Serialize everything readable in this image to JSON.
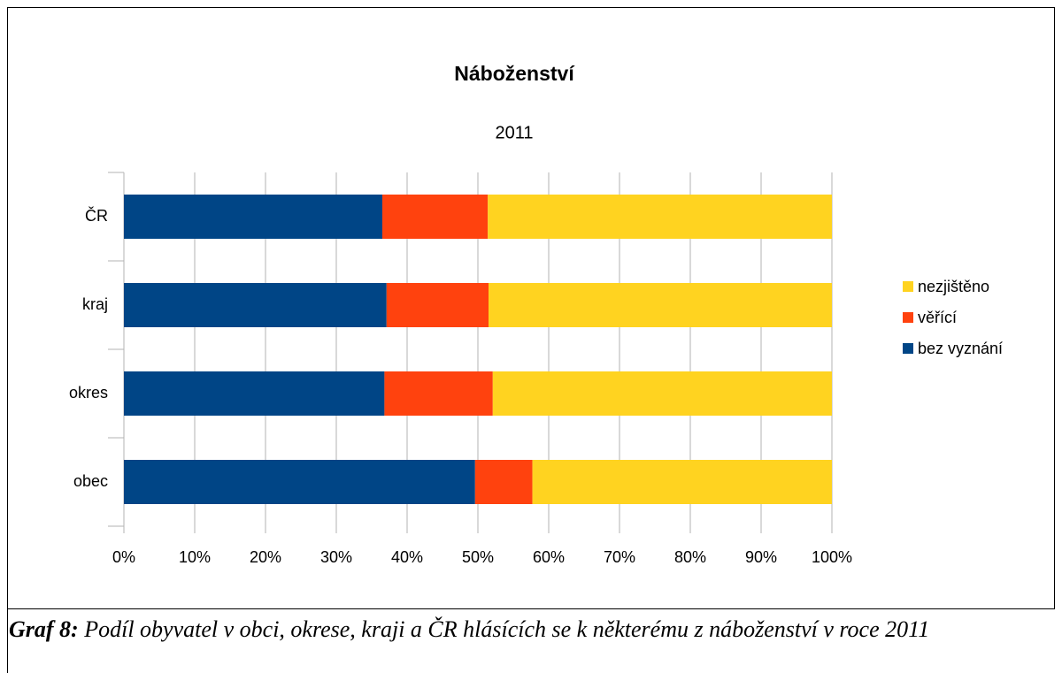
{
  "chart_data": {
    "type": "stacked_barh",
    "title": "Náboženství",
    "subtitle": "2011",
    "categories": [
      "ČR",
      "kraj",
      "okres",
      "obec"
    ],
    "series": [
      {
        "name": "bez vyznání",
        "color": "#004586",
        "values": [
          36.5,
          37.1,
          36.8,
          49.6
        ]
      },
      {
        "name": "věřící",
        "color": "#ff420e",
        "values": [
          14.9,
          14.4,
          15.3,
          8.1
        ]
      },
      {
        "name": "nezjištěno",
        "color": "#ffd320",
        "values": [
          48.6,
          48.5,
          47.9,
          42.3
        ]
      }
    ],
    "xlim": [
      0,
      100
    ],
    "xticks": [
      {
        "value": 0,
        "label": "0%"
      },
      {
        "value": 10,
        "label": "10%"
      },
      {
        "value": 20,
        "label": "20%"
      },
      {
        "value": 30,
        "label": "30%"
      },
      {
        "value": 40,
        "label": "40%"
      },
      {
        "value": 50,
        "label": "50%"
      },
      {
        "value": 60,
        "label": "60%"
      },
      {
        "value": 70,
        "label": "70%"
      },
      {
        "value": 80,
        "label": "80%"
      },
      {
        "value": 90,
        "label": "90%"
      },
      {
        "value": 100,
        "label": "100%"
      }
    ],
    "grid": true,
    "legend": "right",
    "legend_reversed": true,
    "caption_label": "Graf 8:",
    "caption": "Podíl obyvatel v obci, okrese, kraji a ČR hlásících se k některému z náboženství v roce 2011"
  }
}
